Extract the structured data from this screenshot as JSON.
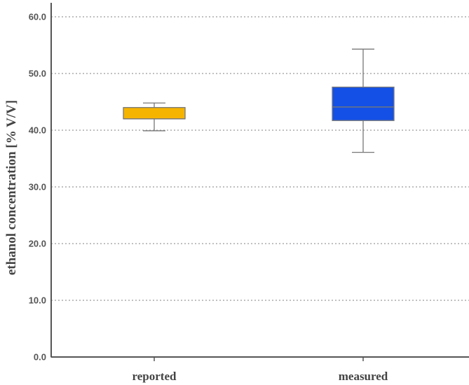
{
  "chart_data": {
    "type": "box",
    "ylabel": "ethanol concentration [% V/V]",
    "ylim": [
      0,
      60
    ],
    "yticks": [
      "0.0",
      "10.0",
      "20.0",
      "30.0",
      "40.0",
      "50.0",
      "60.0"
    ],
    "ytick_values": [
      0,
      10,
      20,
      30,
      40,
      50,
      60
    ],
    "grid": "horizontal dotted",
    "categories": [
      "reported",
      "measured"
    ],
    "boxes": [
      {
        "category": "reported",
        "whisker_low": 39.9,
        "q1": 42.0,
        "median": 42.0,
        "q3": 44.0,
        "whisker_high": 44.8,
        "color": "#F5B400"
      },
      {
        "category": "measured",
        "whisker_low": 36.1,
        "q1": 41.7,
        "median": 44.1,
        "q3": 47.6,
        "whisker_high": 54.3,
        "color": "#1450E6"
      }
    ]
  }
}
